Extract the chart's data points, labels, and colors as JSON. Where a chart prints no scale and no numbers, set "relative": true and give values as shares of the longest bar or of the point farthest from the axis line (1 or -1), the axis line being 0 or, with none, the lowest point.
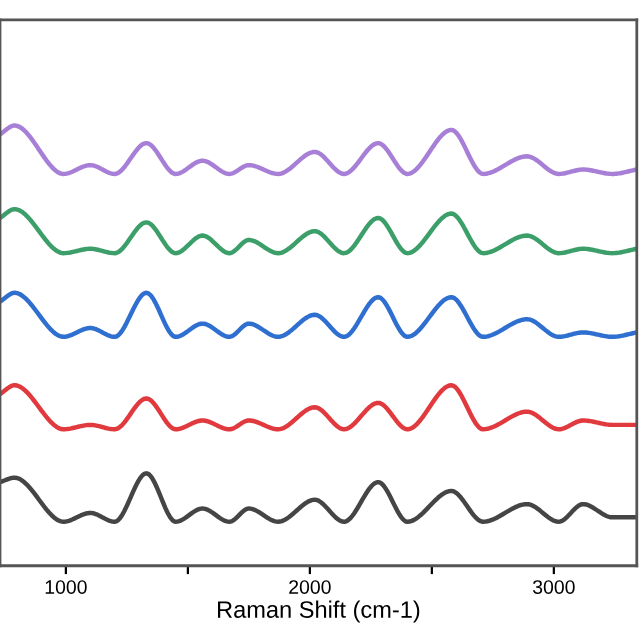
{
  "chart_data": {
    "type": "line",
    "relative": true,
    "xlabel": "Raman Shift (cm-1)",
    "xlim": [
      730,
      3340
    ],
    "xticks": [
      1000,
      {
        "value": 1500,
        "label": null
      },
      2000,
      {
        "value": 2500,
        "label": null
      },
      3000
    ],
    "x": [
      730,
      790,
      990,
      1100,
      1200,
      1330,
      1450,
      1560,
      1670,
      1750,
      1870,
      2020,
      2140,
      2280,
      2400,
      2580,
      2710,
      2890,
      3020,
      3120,
      3240,
      3340
    ],
    "grid": false,
    "tick_labels": "x",
    "series": [
      {
        "color": "#454545",
        "values": [
          0.19,
          0.2,
          0.1,
          0.12,
          0.1,
          0.21,
          0.1,
          0.13,
          0.1,
          0.13,
          0.1,
          0.15,
          0.1,
          0.19,
          0.1,
          0.17,
          0.1,
          0.14,
          0.1,
          0.14,
          0.11,
          0.11
        ]
      },
      {
        "color": "#e0393e",
        "values": [
          0.39,
          0.41,
          0.31,
          0.32,
          0.31,
          0.38,
          0.31,
          0.33,
          0.31,
          0.33,
          0.31,
          0.36,
          0.31,
          0.37,
          0.31,
          0.41,
          0.31,
          0.35,
          0.31,
          0.33,
          0.32,
          0.32
        ]
      },
      {
        "color": "#2f6fd0",
        "values": [
          0.6,
          0.62,
          0.52,
          0.54,
          0.52,
          0.62,
          0.52,
          0.55,
          0.52,
          0.55,
          0.52,
          0.57,
          0.52,
          0.61,
          0.52,
          0.61,
          0.52,
          0.56,
          0.52,
          0.53,
          0.52,
          0.53
        ]
      },
      {
        "color": "#3c9f6a",
        "values": [
          0.79,
          0.81,
          0.71,
          0.72,
          0.71,
          0.78,
          0.71,
          0.75,
          0.71,
          0.74,
          0.71,
          0.76,
          0.71,
          0.79,
          0.71,
          0.8,
          0.71,
          0.75,
          0.71,
          0.72,
          0.71,
          0.72
        ]
      },
      {
        "color": "#a77fd6",
        "values": [
          0.98,
          1.0,
          0.89,
          0.91,
          0.89,
          0.96,
          0.89,
          0.92,
          0.89,
          0.91,
          0.89,
          0.94,
          0.89,
          0.96,
          0.89,
          0.99,
          0.89,
          0.93,
          0.89,
          0.9,
          0.89,
          0.9
        ]
      }
    ]
  }
}
